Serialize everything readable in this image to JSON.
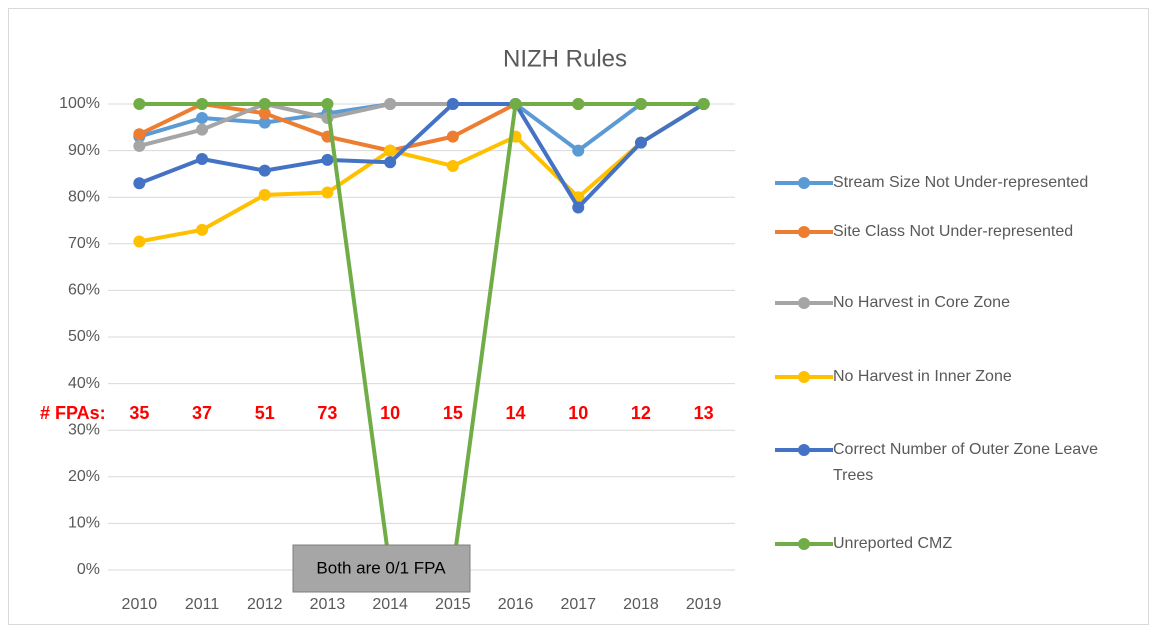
{
  "chart_data": {
    "type": "line",
    "title": "NIZH Rules",
    "categories": [
      "2010",
      "2011",
      "2012",
      "2013",
      "2014",
      "2015",
      "2016",
      "2017",
      "2018",
      "2019"
    ],
    "series": [
      {
        "name": "Stream Size Not Under-represented",
        "color": "#5b9bd5",
        "values": [
          93,
          97,
          96,
          98,
          100,
          100,
          100,
          90,
          100,
          100
        ]
      },
      {
        "name": "Site Class Not Under-represented",
        "color": "#ed7d31",
        "values": [
          93.5,
          100,
          98,
          93,
          90,
          93,
          100,
          100,
          100,
          100
        ]
      },
      {
        "name": "No Harvest in Core Zone",
        "color": "#a5a5a5",
        "values": [
          91,
          94.5,
          100,
          97,
          100,
          100,
          100,
          100,
          100,
          100
        ]
      },
      {
        "name": "No Harvest in Inner Zone",
        "color": "#ffc000",
        "values": [
          70.5,
          73,
          80.5,
          81,
          90,
          86.7,
          93,
          80,
          91.7,
          100
        ]
      },
      {
        "name": "Correct Number of Outer Zone Leave Trees",
        "color": "#4472c4",
        "values": [
          83,
          88.2,
          85.7,
          88,
          87.5,
          100,
          100,
          77.8,
          91.7,
          100
        ]
      },
      {
        "name": "Unreported CMZ",
        "color": "#70ad47",
        "values": [
          100,
          100,
          100,
          100,
          0,
          0,
          100,
          100,
          100,
          100
        ]
      }
    ],
    "ylim": [
      0,
      100
    ],
    "yticks": [
      {
        "value": 0,
        "label": "0%"
      },
      {
        "value": 10,
        "label": "10%"
      },
      {
        "value": 20,
        "label": "20%"
      },
      {
        "value": 30,
        "label": "30%"
      },
      {
        "value": 40,
        "label": "40%"
      },
      {
        "value": 50,
        "label": "50%"
      },
      {
        "value": 60,
        "label": "60%"
      },
      {
        "value": 70,
        "label": "70%"
      },
      {
        "value": 80,
        "label": "80%"
      },
      {
        "value": 90,
        "label": "90%"
      },
      {
        "value": 100,
        "label": "100%"
      }
    ],
    "grid": true,
    "legend": "right",
    "annotations": {
      "fpa_label": "# FPAs:",
      "fpa_counts": [
        "35",
        "37",
        "51",
        "73",
        "10",
        "15",
        "14",
        "10",
        "12",
        "13"
      ],
      "note": "Both are 0/1 FPA"
    }
  }
}
